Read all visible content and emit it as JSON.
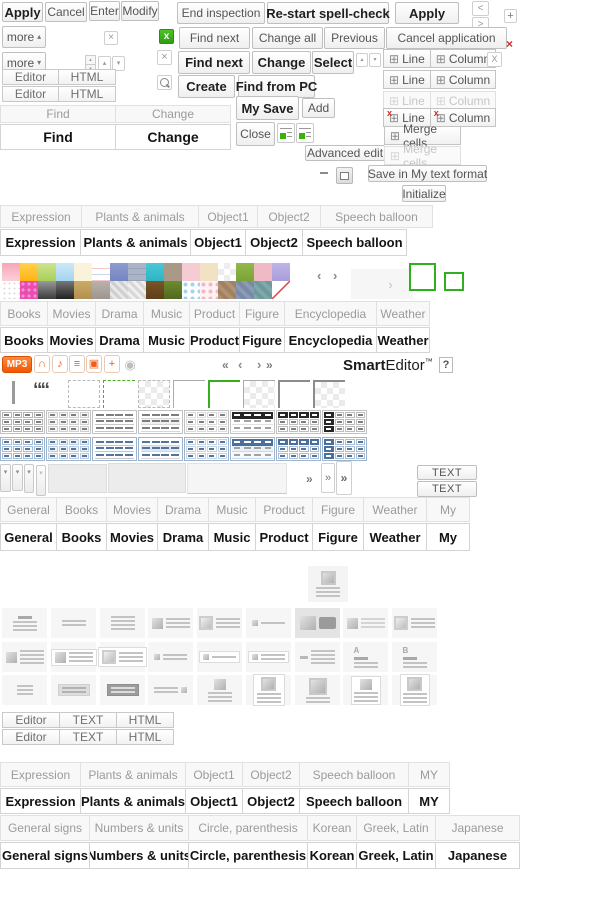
{
  "accent": {
    "green": "#2fb11e",
    "orange": "#f25a17",
    "blue_header": "#4a6f9c",
    "red": "#cc2b2b",
    "dark_header": "#262626"
  },
  "buttons": {
    "apply": "Apply",
    "cancel": "Cancel",
    "enter": "Enter",
    "modify": "Modify",
    "end_inspection": "End inspection",
    "restart_spellcheck": "Re-start spell-check",
    "apply2": "Apply",
    "more": "more",
    "find_next": "Find next",
    "change_all": "Change all",
    "previous": "Previous",
    "cancel_application": "Cancel application",
    "find_next_bold": "Find next",
    "change_bold": "Change",
    "select": "Select",
    "create": "Create",
    "find_from_pc": "Find from PC",
    "my_save": "My Save",
    "add": "Add",
    "close": "Close",
    "advanced_edit": "Advanced edit",
    "line": "Line",
    "column": "Column",
    "merge_cells": "Merge cells",
    "merge_cells_disabled": "Merge cells",
    "save_my_text": "Save in My text format",
    "initialize": "Initialize",
    "mp3": "MP3",
    "text": "TEXT"
  },
  "brand": {
    "smart": "Smart",
    "editor_word": "Editor",
    "tm": "™",
    "help": "?"
  },
  "glyphs": {
    "more_up": "▴",
    "more_down": "▾",
    "chev_up": "▴",
    "chev_down": "▾",
    "chev_left": "‹",
    "chev_right": "›",
    "lt": "<",
    "gt": ">",
    "dbl_left": "«",
    "dbl_right": "»",
    "plus": "+",
    "minus": "−",
    "close": "×",
    "x_lower": "x",
    "x_upper": "X",
    "table": "⊞",
    "note": "♪",
    "lines": "≡",
    "tv": "▣",
    "headphones": "∩",
    "disc": "◉",
    "quote": "““"
  },
  "tabs": {
    "row_a": [
      "Expression",
      "Plants & animals",
      "Object1",
      "Object2",
      "Speech balloon"
    ],
    "row_b": [
      "Books",
      "Movies",
      "Drama",
      "Music",
      "Product",
      "Figure",
      "Encyclopedia",
      "Weather"
    ],
    "row_c": [
      "General",
      "Books",
      "Movies",
      "Drama",
      "Music",
      "Product",
      "Figure",
      "Weather",
      "My"
    ],
    "row_d": [
      "Expression",
      "Plants & animals",
      "Object1",
      "Object2",
      "Speech balloon",
      "MY"
    ],
    "row_e": [
      "General signs",
      "Numbers & units",
      "Circle, parenthesis",
      "Korean",
      "Greek, Latin",
      "Japanese"
    ],
    "find_change": [
      "Find",
      "Change"
    ],
    "editor_text_html": [
      "Editor",
      "TEXT",
      "HTML"
    ],
    "editor_html": [
      "Editor",
      "HTML"
    ]
  },
  "tab_strips": {
    "a_grey": {
      "labels": "row_a",
      "widths": [
        82,
        118,
        60,
        64,
        113
      ]
    },
    "a_bold": {
      "labels": "row_a",
      "widths": [
        81,
        111,
        56,
        58,
        105
      ]
    },
    "b_grey": {
      "labels": "row_b",
      "widths": [
        48,
        49,
        49,
        47,
        51,
        46,
        93,
        54
      ]
    },
    "b_bold": {
      "labels": "row_b",
      "widths": [
        48,
        49,
        49,
        47,
        51,
        46,
        93,
        54
      ]
    },
    "c_grey": {
      "labels": "row_c",
      "widths": [
        57,
        51,
        52,
        52,
        48,
        58,
        52,
        64,
        44
      ]
    },
    "c_bold": {
      "labels": "row_c",
      "widths": [
        57,
        51,
        52,
        52,
        48,
        58,
        52,
        64,
        44
      ]
    },
    "d_grey": {
      "labels": "row_d",
      "widths": [
        81,
        106,
        58,
        58,
        110,
        42
      ]
    },
    "d_bold": {
      "labels": "row_d",
      "widths": [
        81,
        106,
        58,
        58,
        110,
        42
      ]
    },
    "e_grey": {
      "labels": "row_e",
      "widths": [
        90,
        100,
        120,
        50,
        80,
        85
      ]
    },
    "e_bold": {
      "labels": "row_e",
      "widths": [
        90,
        100,
        120,
        50,
        80,
        85
      ]
    },
    "fc_grey": {
      "labels": "find_change",
      "widths": [
        116,
        116
      ]
    },
    "fc_bold": {
      "labels": "find_change",
      "widths": [
        116,
        116
      ]
    },
    "eth_1": {
      "labels": "editor_text_html",
      "widths": [
        58,
        58,
        58
      ]
    },
    "eth_2": {
      "labels": "editor_text_html",
      "widths": [
        58,
        58,
        58
      ]
    },
    "eh_1": {
      "labels": "editor_html",
      "widths": [
        57,
        58
      ]
    },
    "eh_2": {
      "labels": "editor_html",
      "widths": [
        57,
        58
      ]
    }
  },
  "palette": [
    [
      "linear-gradient(180deg,#f7a6b6,#fbd0d8)",
      "linear-gradient(180deg,#ffd24d,#ffb214)",
      "linear-gradient(180deg,#cfe48e,#a8cf5a)",
      "linear-gradient(180deg,#cde9f7,#a3d4ef)",
      "#f9f3d9",
      "repeating-linear-gradient(180deg,#ffffff 0 5px,#f3c6cc 5px 6px,#ffffff 6px 11px,#c9d7ea 11px 12px)",
      "linear-gradient(180deg,#8d9bce,#7486c0)",
      "repeating-linear-gradient(180deg,#aab4c6 0 5px,#97a3b8 5px 6px)",
      "linear-gradient(180deg,#49c8d6,#2fb4c4)",
      "#a99a87",
      "#f6ccd4",
      "#f2e2c4",
      "conic-gradient(#ededed 25%,#ffffff 0 50%,#ededed 0 75%,#ffffff 0) 0 0/12px 12px",
      "linear-gradient(180deg,#93b94a,#7aa336)",
      "#efb9c6",
      "linear-gradient(180deg,#beb4e6,#a89ddb)"
    ],
    [
      "radial-gradient(#d9d9d9 1px,#ffffff 1px) 0 0/5px 5px",
      "radial-gradient(#f78fd0 1.5px,#ea4cb2 1.5px) 0 0/6px 6px",
      "linear-gradient(180deg,#9a9a9a,#3c3c3c)",
      "linear-gradient(180deg,#777777,#222222)",
      "linear-gradient(180deg,#cbaa6b,#b3904f)",
      "linear-gradient(180deg,#b8b2ab,#9d968e)",
      "repeating-linear-gradient(45deg,#cfcfcf 0 3px,#e8e8e8 3px 6px)",
      "repeating-linear-gradient(45deg,#d8d8d8 0 3px,#f0f0f0 3px 6px)",
      "linear-gradient(180deg,#7a5526,#5d3f1a)",
      "linear-gradient(180deg,#6d8c2f,#50691f)",
      "radial-gradient(#9fd3ef 2px,#ffffff 2px) 0 0/7px 7px",
      "radial-gradient(#f3b8c4 2px,#fdf3f4 2px) 0 0/7px 7px",
      "repeating-linear-gradient(45deg,#b09274 0 4px,#a08262 4px 8px)",
      "repeating-linear-gradient(45deg,#8b9ab5 0 4px,#7a89a6 4px 8px)",
      "repeating-linear-gradient(45deg,#7fa8ab 0 4px,#6d989c 4px 8px)",
      "linear-gradient(135deg,#ffffff 46%,#e04444 48%,#e04444 52%,#ffffff 54%)"
    ]
  ],
  "table_styles": [
    "cells",
    "cells2",
    "rows",
    "rows-alt",
    "grid-light",
    "header",
    "header-grid",
    "col-header"
  ],
  "table_themes": [
    "grey",
    "blue"
  ],
  "standalone_tile": {
    "name": "image-center-layout",
    "c": "",
    "i": "topb",
    "l": 3,
    "a": "c"
  },
  "layout_tiles": [
    {
      "name": "centered-title-text",
      "l": 4,
      "a": "c",
      "title": true
    },
    {
      "name": "centered-two-lines",
      "l": 2,
      "a": "c"
    },
    {
      "name": "left-text-lines",
      "l": 4,
      "a": "l"
    },
    {
      "name": "image-left-text",
      "i": "sq",
      "l": 3
    },
    {
      "name": "framed-image-left-text",
      "i": "sqb",
      "l": 3
    },
    {
      "name": "small-image-one-line",
      "i": "xs",
      "l": 1
    },
    {
      "name": "large-image-text-selected",
      "i": "big",
      "l": 0,
      "blk": true,
      "sel": true
    },
    {
      "name": "image-left-three-lines",
      "i": "sq",
      "l": 3,
      "light": true
    },
    {
      "name": "framed-image-three-lines",
      "i": "sqb",
      "l": 3
    },
    {
      "name": "small-image-four-lines",
      "i": "sq",
      "l": 4
    },
    {
      "name": "card-image-text",
      "c": "w",
      "i": "sq",
      "l": 3
    },
    {
      "name": "card-framed-image-text",
      "c": "w",
      "i": "sqb",
      "l": 3
    },
    {
      "name": "tiny-image-two-lines",
      "i": "xs",
      "l": 2
    },
    {
      "name": "card-small-image-one-line",
      "c": "w",
      "i": "xs",
      "l": 1
    },
    {
      "name": "card-small-image-two-lines",
      "c": "w",
      "i": "xs",
      "l": 2
    },
    {
      "name": "dash-four-lines",
      "i": "dash",
      "l": 4
    },
    {
      "name": "label-a-text",
      "t": "A",
      "l": 3,
      "title": true
    },
    {
      "name": "label-b-text",
      "t": "B",
      "l": 3,
      "title": true
    },
    {
      "name": "three-short-lines",
      "l": 3,
      "a": "l",
      "short": true
    },
    {
      "name": "grey-card-lines",
      "c": "g",
      "l": 2
    },
    {
      "name": "dark-card-lines",
      "c": "d",
      "l": 2
    },
    {
      "name": "two-lines-image-right",
      "i": "xsr",
      "l": 2
    },
    {
      "name": "image-top-centered-text",
      "i": "top",
      "l": 3,
      "a": "c"
    },
    {
      "name": "card-image-top-text",
      "c": "w",
      "i": "topb",
      "l": 3,
      "a": "c"
    },
    {
      "name": "large-framed-image-top-text",
      "i": "topbig",
      "l": 2,
      "a": "c"
    },
    {
      "name": "tall-card-image-top-text",
      "c": "wv",
      "i": "top",
      "l": 3,
      "a": "c"
    },
    {
      "name": "tall-card-framed-image-top-text",
      "c": "wv",
      "i": "topb",
      "l": 3,
      "a": "c"
    }
  ]
}
